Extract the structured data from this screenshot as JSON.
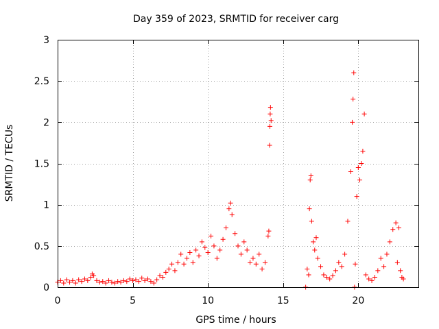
{
  "chart_data": {
    "type": "scatter",
    "title": "Day 359 of 2023, SRMTID for receiver carg",
    "xlabel": "GPS time / hours",
    "ylabel": "SRMTID / TECUs",
    "xlim": [
      0,
      24
    ],
    "ylim": [
      0,
      3
    ],
    "xticks": [
      0,
      5,
      10,
      15,
      20
    ],
    "xtick_labels": [
      "0",
      "5",
      "10",
      "15",
      "20"
    ],
    "yticks": [
      0,
      0.5,
      1,
      1.5,
      2,
      2.5,
      3
    ],
    "ytick_labels": [
      "0",
      "0.5",
      "1",
      "1.5",
      "2",
      "2.5",
      "3"
    ],
    "grid": true,
    "marker": "+",
    "series": [
      {
        "name": "SRMTID",
        "color": "#ff0000",
        "points": [
          [
            0.0,
            0.06
          ],
          [
            0.2,
            0.08
          ],
          [
            0.4,
            0.05
          ],
          [
            0.6,
            0.09
          ],
          [
            0.8,
            0.06
          ],
          [
            1.0,
            0.08
          ],
          [
            1.2,
            0.05
          ],
          [
            1.4,
            0.09
          ],
          [
            1.6,
            0.07
          ],
          [
            1.8,
            0.1
          ],
          [
            2.0,
            0.08
          ],
          [
            2.2,
            0.12
          ],
          [
            2.3,
            0.16
          ],
          [
            2.4,
            0.14
          ],
          [
            2.6,
            0.08
          ],
          [
            2.8,
            0.06
          ],
          [
            3.0,
            0.07
          ],
          [
            3.2,
            0.05
          ],
          [
            3.4,
            0.08
          ],
          [
            3.6,
            0.06
          ],
          [
            3.8,
            0.05
          ],
          [
            4.0,
            0.07
          ],
          [
            4.2,
            0.06
          ],
          [
            4.4,
            0.08
          ],
          [
            4.6,
            0.07
          ],
          [
            4.8,
            0.1
          ],
          [
            5.0,
            0.08
          ],
          [
            5.2,
            0.09
          ],
          [
            5.4,
            0.07
          ],
          [
            5.6,
            0.11
          ],
          [
            5.8,
            0.08
          ],
          [
            6.0,
            0.1
          ],
          [
            6.2,
            0.07
          ],
          [
            6.4,
            0.05
          ],
          [
            6.6,
            0.09
          ],
          [
            6.8,
            0.14
          ],
          [
            7.0,
            0.12
          ],
          [
            7.2,
            0.18
          ],
          [
            7.4,
            0.22
          ],
          [
            7.6,
            0.28
          ],
          [
            7.8,
            0.2
          ],
          [
            8.0,
            0.3
          ],
          [
            8.2,
            0.4
          ],
          [
            8.4,
            0.28
          ],
          [
            8.6,
            0.35
          ],
          [
            8.8,
            0.42
          ],
          [
            9.0,
            0.3
          ],
          [
            9.2,
            0.45
          ],
          [
            9.4,
            0.38
          ],
          [
            9.6,
            0.55
          ],
          [
            9.8,
            0.48
          ],
          [
            10.0,
            0.42
          ],
          [
            10.2,
            0.62
          ],
          [
            10.4,
            0.5
          ],
          [
            10.6,
            0.35
          ],
          [
            10.8,
            0.45
          ],
          [
            11.0,
            0.58
          ],
          [
            11.2,
            0.72
          ],
          [
            11.4,
            0.95
          ],
          [
            11.5,
            1.02
          ],
          [
            11.6,
            0.88
          ],
          [
            11.8,
            0.65
          ],
          [
            12.0,
            0.5
          ],
          [
            12.2,
            0.4
          ],
          [
            12.4,
            0.55
          ],
          [
            12.6,
            0.45
          ],
          [
            12.8,
            0.3
          ],
          [
            13.0,
            0.35
          ],
          [
            13.2,
            0.28
          ],
          [
            13.4,
            0.4
          ],
          [
            13.6,
            0.22
          ],
          [
            13.8,
            0.3
          ],
          [
            14.0,
            0.62
          ],
          [
            14.05,
            0.68
          ],
          [
            14.1,
            1.72
          ],
          [
            14.12,
            1.95
          ],
          [
            14.14,
            2.1
          ],
          [
            14.16,
            2.18
          ],
          [
            14.2,
            2.02
          ],
          [
            16.5,
            0.0
          ],
          [
            16.6,
            0.22
          ],
          [
            16.7,
            0.15
          ],
          [
            16.75,
            0.95
          ],
          [
            16.8,
            1.3
          ],
          [
            16.85,
            1.35
          ],
          [
            16.9,
            0.8
          ],
          [
            17.0,
            0.55
          ],
          [
            17.1,
            0.45
          ],
          [
            17.2,
            0.6
          ],
          [
            17.3,
            0.35
          ],
          [
            17.5,
            0.25
          ],
          [
            17.7,
            0.15
          ],
          [
            17.9,
            0.12
          ],
          [
            18.1,
            0.1
          ],
          [
            18.3,
            0.14
          ],
          [
            18.5,
            0.2
          ],
          [
            18.7,
            0.3
          ],
          [
            18.9,
            0.25
          ],
          [
            19.1,
            0.4
          ],
          [
            19.3,
            0.8
          ],
          [
            19.5,
            1.4
          ],
          [
            19.6,
            2.0
          ],
          [
            19.65,
            2.28
          ],
          [
            19.7,
            2.6
          ],
          [
            19.75,
            0.0
          ],
          [
            19.8,
            0.28
          ],
          [
            19.9,
            1.1
          ],
          [
            20.0,
            1.45
          ],
          [
            20.1,
            1.3
          ],
          [
            20.2,
            1.5
          ],
          [
            20.3,
            1.65
          ],
          [
            20.4,
            2.1
          ],
          [
            20.5,
            0.15
          ],
          [
            20.7,
            0.1
          ],
          [
            20.9,
            0.08
          ],
          [
            21.1,
            0.12
          ],
          [
            21.3,
            0.2
          ],
          [
            21.5,
            0.35
          ],
          [
            21.7,
            0.25
          ],
          [
            21.9,
            0.4
          ],
          [
            22.1,
            0.55
          ],
          [
            22.3,
            0.7
          ],
          [
            22.5,
            0.78
          ],
          [
            22.6,
            0.3
          ],
          [
            22.7,
            0.72
          ],
          [
            22.8,
            0.2
          ],
          [
            22.9,
            0.12
          ],
          [
            23.0,
            0.1
          ]
        ]
      }
    ]
  }
}
